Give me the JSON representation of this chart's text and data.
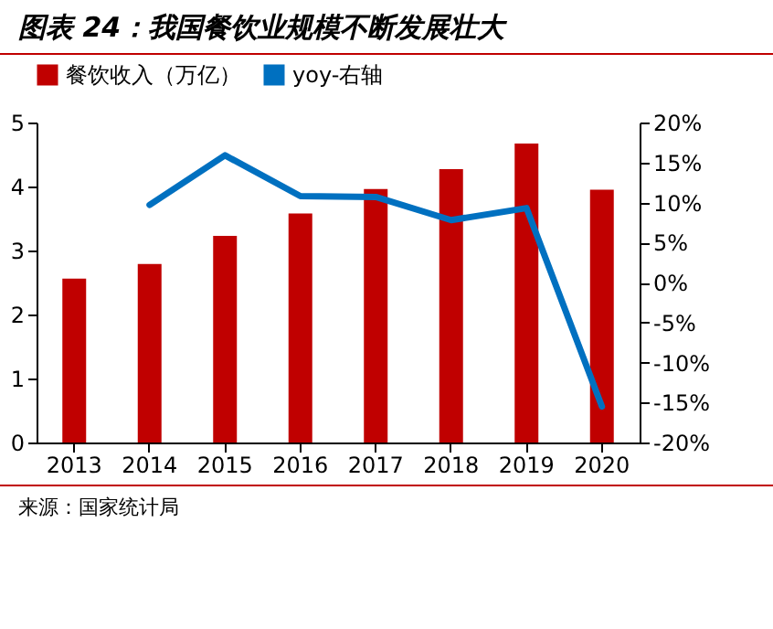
{
  "chart_data": {
    "type": "bar",
    "title": "图表 24：我国餐饮业规模不断发展壮大",
    "categories": [
      "2013",
      "2014",
      "2015",
      "2016",
      "2017",
      "2018",
      "2019",
      "2020"
    ],
    "series": [
      {
        "name": "餐饮收入（万亿）",
        "color": "#c00000",
        "values": [
          2.56,
          2.79,
          3.23,
          3.58,
          3.96,
          4.27,
          4.67,
          3.95
        ]
      },
      {
        "name": "yoy-右轴",
        "type": "line",
        "axis": "y2",
        "color": "#0070c0",
        "values": [
          null,
          9.7,
          15.9,
          10.8,
          10.7,
          7.8,
          9.3,
          -15.5
        ]
      }
    ],
    "ylim": [
      0,
      5
    ],
    "yticks": [
      0,
      1,
      2,
      3,
      4,
      5
    ],
    "y2lim": [
      -20,
      20
    ],
    "y2ticks": [
      {
        "value": -20,
        "label": "-20%"
      },
      {
        "value": -15,
        "label": "-15%"
      },
      {
        "value": -10,
        "label": "-10%"
      },
      {
        "value": -5,
        "label": "-5%"
      },
      {
        "value": 0,
        "label": "0%"
      },
      {
        "value": 5,
        "label": "5%"
      },
      {
        "value": 10,
        "label": "10%"
      },
      {
        "value": 15,
        "label": "15%"
      },
      {
        "value": 20,
        "label": "20%"
      }
    ],
    "grid": false,
    "legend": "top",
    "annotations": [
      "来源：国家统计局"
    ]
  }
}
